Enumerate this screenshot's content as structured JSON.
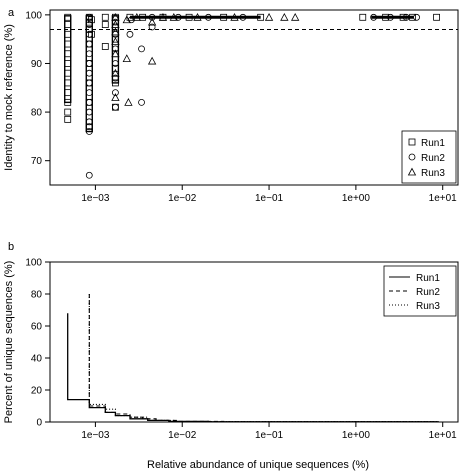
{
  "figure": {
    "xlabel": "Relative abundance of unique sequences (%)"
  },
  "chart_data": [
    {
      "panel": "a",
      "type": "scatter",
      "ylabel": "Identity to mock reference (%)",
      "xscale": "log",
      "xlim": [
        0.0003,
        15
      ],
      "ylim": [
        65,
        101
      ],
      "xticks": [
        0.001,
        0.01,
        0.1,
        1,
        10
      ],
      "xtick_labels": [
        "1e−03",
        "1e−02",
        "1e−01",
        "1e+00",
        "1e+01"
      ],
      "yticks": [
        70,
        80,
        90,
        100
      ],
      "ytick_labels": [
        "70",
        "80",
        "90",
        "100"
      ],
      "reference_line": {
        "y": 97,
        "style": "dashed"
      },
      "legend": {
        "position": "bottom-right"
      },
      "series": [
        {
          "name": "Run1",
          "marker": "square",
          "points": [
            [
              0.00048,
              78.5
            ],
            [
              0.00048,
              80
            ],
            [
              0.00048,
              82
            ],
            [
              0.00048,
              84
            ],
            [
              0.00048,
              86
            ],
            [
              0.00048,
              88
            ],
            [
              0.00048,
              90
            ],
            [
              0.00048,
              92
            ],
            [
              0.00048,
              94
            ],
            [
              0.00048,
              96
            ],
            [
              0.00048,
              98
            ],
            [
              0.00048,
              99.5
            ],
            [
              0.00085,
              82
            ],
            [
              0.00085,
              86
            ],
            [
              0.00085,
              90
            ],
            [
              0.00085,
              94
            ],
            [
              0.00085,
              97
            ],
            [
              0.00085,
              98.5
            ],
            [
              0.00085,
              99.5
            ],
            [
              0.0009,
              96
            ],
            [
              0.0009,
              99
            ],
            [
              0.0013,
              93.5
            ],
            [
              0.0013,
              98
            ],
            [
              0.0013,
              99.5
            ],
            [
              0.0017,
              81
            ],
            [
              0.0017,
              86
            ],
            [
              0.0017,
              89
            ],
            [
              0.0017,
              92
            ],
            [
              0.0017,
              95
            ],
            [
              0.0017,
              97.5
            ],
            [
              0.0017,
              99.5
            ],
            [
              0.0025,
              99.5
            ],
            [
              0.0035,
              99.5
            ],
            [
              0.006,
              99.5
            ],
            [
              0.012,
              99.5
            ],
            [
              0.03,
              99.5
            ],
            [
              0.08,
              99.5
            ],
            [
              1.2,
              99.5
            ],
            [
              2.2,
              99.5
            ],
            [
              3.5,
              99.5
            ],
            [
              4.5,
              99.5
            ],
            [
              8.5,
              99.5
            ]
          ]
        },
        {
          "name": "Run2",
          "marker": "circle",
          "points": [
            [
              0.00085,
              67
            ],
            [
              0.00085,
              76
            ],
            [
              0.00085,
              77
            ],
            [
              0.00085,
              78
            ],
            [
              0.00085,
              80
            ],
            [
              0.00085,
              82
            ],
            [
              0.00085,
              84
            ],
            [
              0.00085,
              86
            ],
            [
              0.00085,
              88
            ],
            [
              0.00085,
              90
            ],
            [
              0.00085,
              92
            ],
            [
              0.00085,
              94
            ],
            [
              0.00085,
              96
            ],
            [
              0.00085,
              98
            ],
            [
              0.00085,
              99.5
            ],
            [
              0.0017,
              81
            ],
            [
              0.0017,
              84
            ],
            [
              0.0017,
              87
            ],
            [
              0.0017,
              90
            ],
            [
              0.0017,
              93
            ],
            [
              0.0017,
              96
            ],
            [
              0.0017,
              98.5
            ],
            [
              0.0025,
              96
            ],
            [
              0.0026,
              99
            ],
            [
              0.0034,
              93
            ],
            [
              0.0034,
              82
            ],
            [
              0.0045,
              97.5
            ],
            [
              0.0045,
              99.5
            ],
            [
              0.009,
              99.5
            ],
            [
              0.02,
              99.5
            ],
            [
              0.05,
              99.5
            ],
            [
              1.6,
              99.5
            ],
            [
              2.5,
              99.5
            ],
            [
              3.8,
              99.5
            ],
            [
              5.0,
              99.5
            ]
          ]
        },
        {
          "name": "Run3",
          "marker": "triangle",
          "points": [
            [
              0.0017,
              83
            ],
            [
              0.0017,
              88
            ],
            [
              0.0017,
              92
            ],
            [
              0.0017,
              94.5
            ],
            [
              0.0017,
              96.5
            ],
            [
              0.0017,
              98
            ],
            [
              0.0017,
              99.5
            ],
            [
              0.0023,
              91
            ],
            [
              0.0023,
              99
            ],
            [
              0.0024,
              82
            ],
            [
              0.0045,
              90.5
            ],
            [
              0.003,
              99.5
            ],
            [
              0.0045,
              98.5
            ],
            [
              0.006,
              99.5
            ],
            [
              0.008,
              99.5
            ],
            [
              0.015,
              99.5
            ],
            [
              0.04,
              99.5
            ],
            [
              0.1,
              99.5
            ],
            [
              0.15,
              99.5
            ],
            [
              0.2,
              99.5
            ]
          ]
        }
      ]
    },
    {
      "panel": "b",
      "type": "line",
      "ylabel": "Percent of unique sequences (%)",
      "xscale": "log",
      "xlim": [
        0.0003,
        15
      ],
      "ylim": [
        0,
        100
      ],
      "xticks": [
        0.001,
        0.01,
        0.1,
        1,
        10
      ],
      "xtick_labels": [
        "1e−03",
        "1e−02",
        "1e−01",
        "1e+00",
        "1e+01"
      ],
      "yticks": [
        0,
        20,
        40,
        60,
        80,
        100
      ],
      "ytick_labels": [
        "0",
        "20",
        "40",
        "60",
        "80",
        "100"
      ],
      "legend": {
        "position": "top-right"
      },
      "series": [
        {
          "name": "Run1",
          "style": "solid",
          "points": [
            [
              0.00048,
              68
            ],
            [
              0.00048,
              14
            ],
            [
              0.00085,
              14
            ],
            [
              0.00085,
              9
            ],
            [
              0.0013,
              9
            ],
            [
              0.0013,
              6
            ],
            [
              0.0017,
              6
            ],
            [
              0.0017,
              4
            ],
            [
              0.0025,
              4
            ],
            [
              0.0025,
              2
            ],
            [
              0.004,
              2
            ],
            [
              0.004,
              1
            ],
            [
              0.007,
              1
            ],
            [
              0.007,
              0.4
            ],
            [
              0.02,
              0.4
            ],
            [
              0.02,
              0.1
            ],
            [
              9,
              0.1
            ]
          ]
        },
        {
          "name": "Run2",
          "style": "dashed",
          "points": [
            [
              0.00085,
              80
            ],
            [
              0.00085,
              10
            ],
            [
              0.0013,
              10
            ],
            [
              0.0013,
              6
            ],
            [
              0.0017,
              6
            ],
            [
              0.0017,
              5
            ],
            [
              0.0025,
              5
            ],
            [
              0.0025,
              3
            ],
            [
              0.0035,
              3
            ],
            [
              0.0035,
              2
            ],
            [
              0.005,
              2
            ],
            [
              0.005,
              1
            ],
            [
              0.009,
              1
            ],
            [
              0.009,
              0.4
            ],
            [
              0.03,
              0.4
            ],
            [
              0.03,
              0.1
            ],
            [
              9,
              0.1
            ]
          ]
        },
        {
          "name": "Run3",
          "style": "dotted",
          "points": [
            [
              0.00085,
              80
            ],
            [
              0.00085,
              11
            ],
            [
              0.0013,
              11
            ],
            [
              0.0013,
              8
            ],
            [
              0.0017,
              8
            ],
            [
              0.0017,
              4
            ],
            [
              0.0025,
              4
            ],
            [
              0.0025,
              3
            ],
            [
              0.004,
              3
            ],
            [
              0.004,
              1
            ],
            [
              0.008,
              1
            ],
            [
              0.008,
              0.3
            ],
            [
              9,
              0.3
            ]
          ]
        }
      ]
    }
  ]
}
